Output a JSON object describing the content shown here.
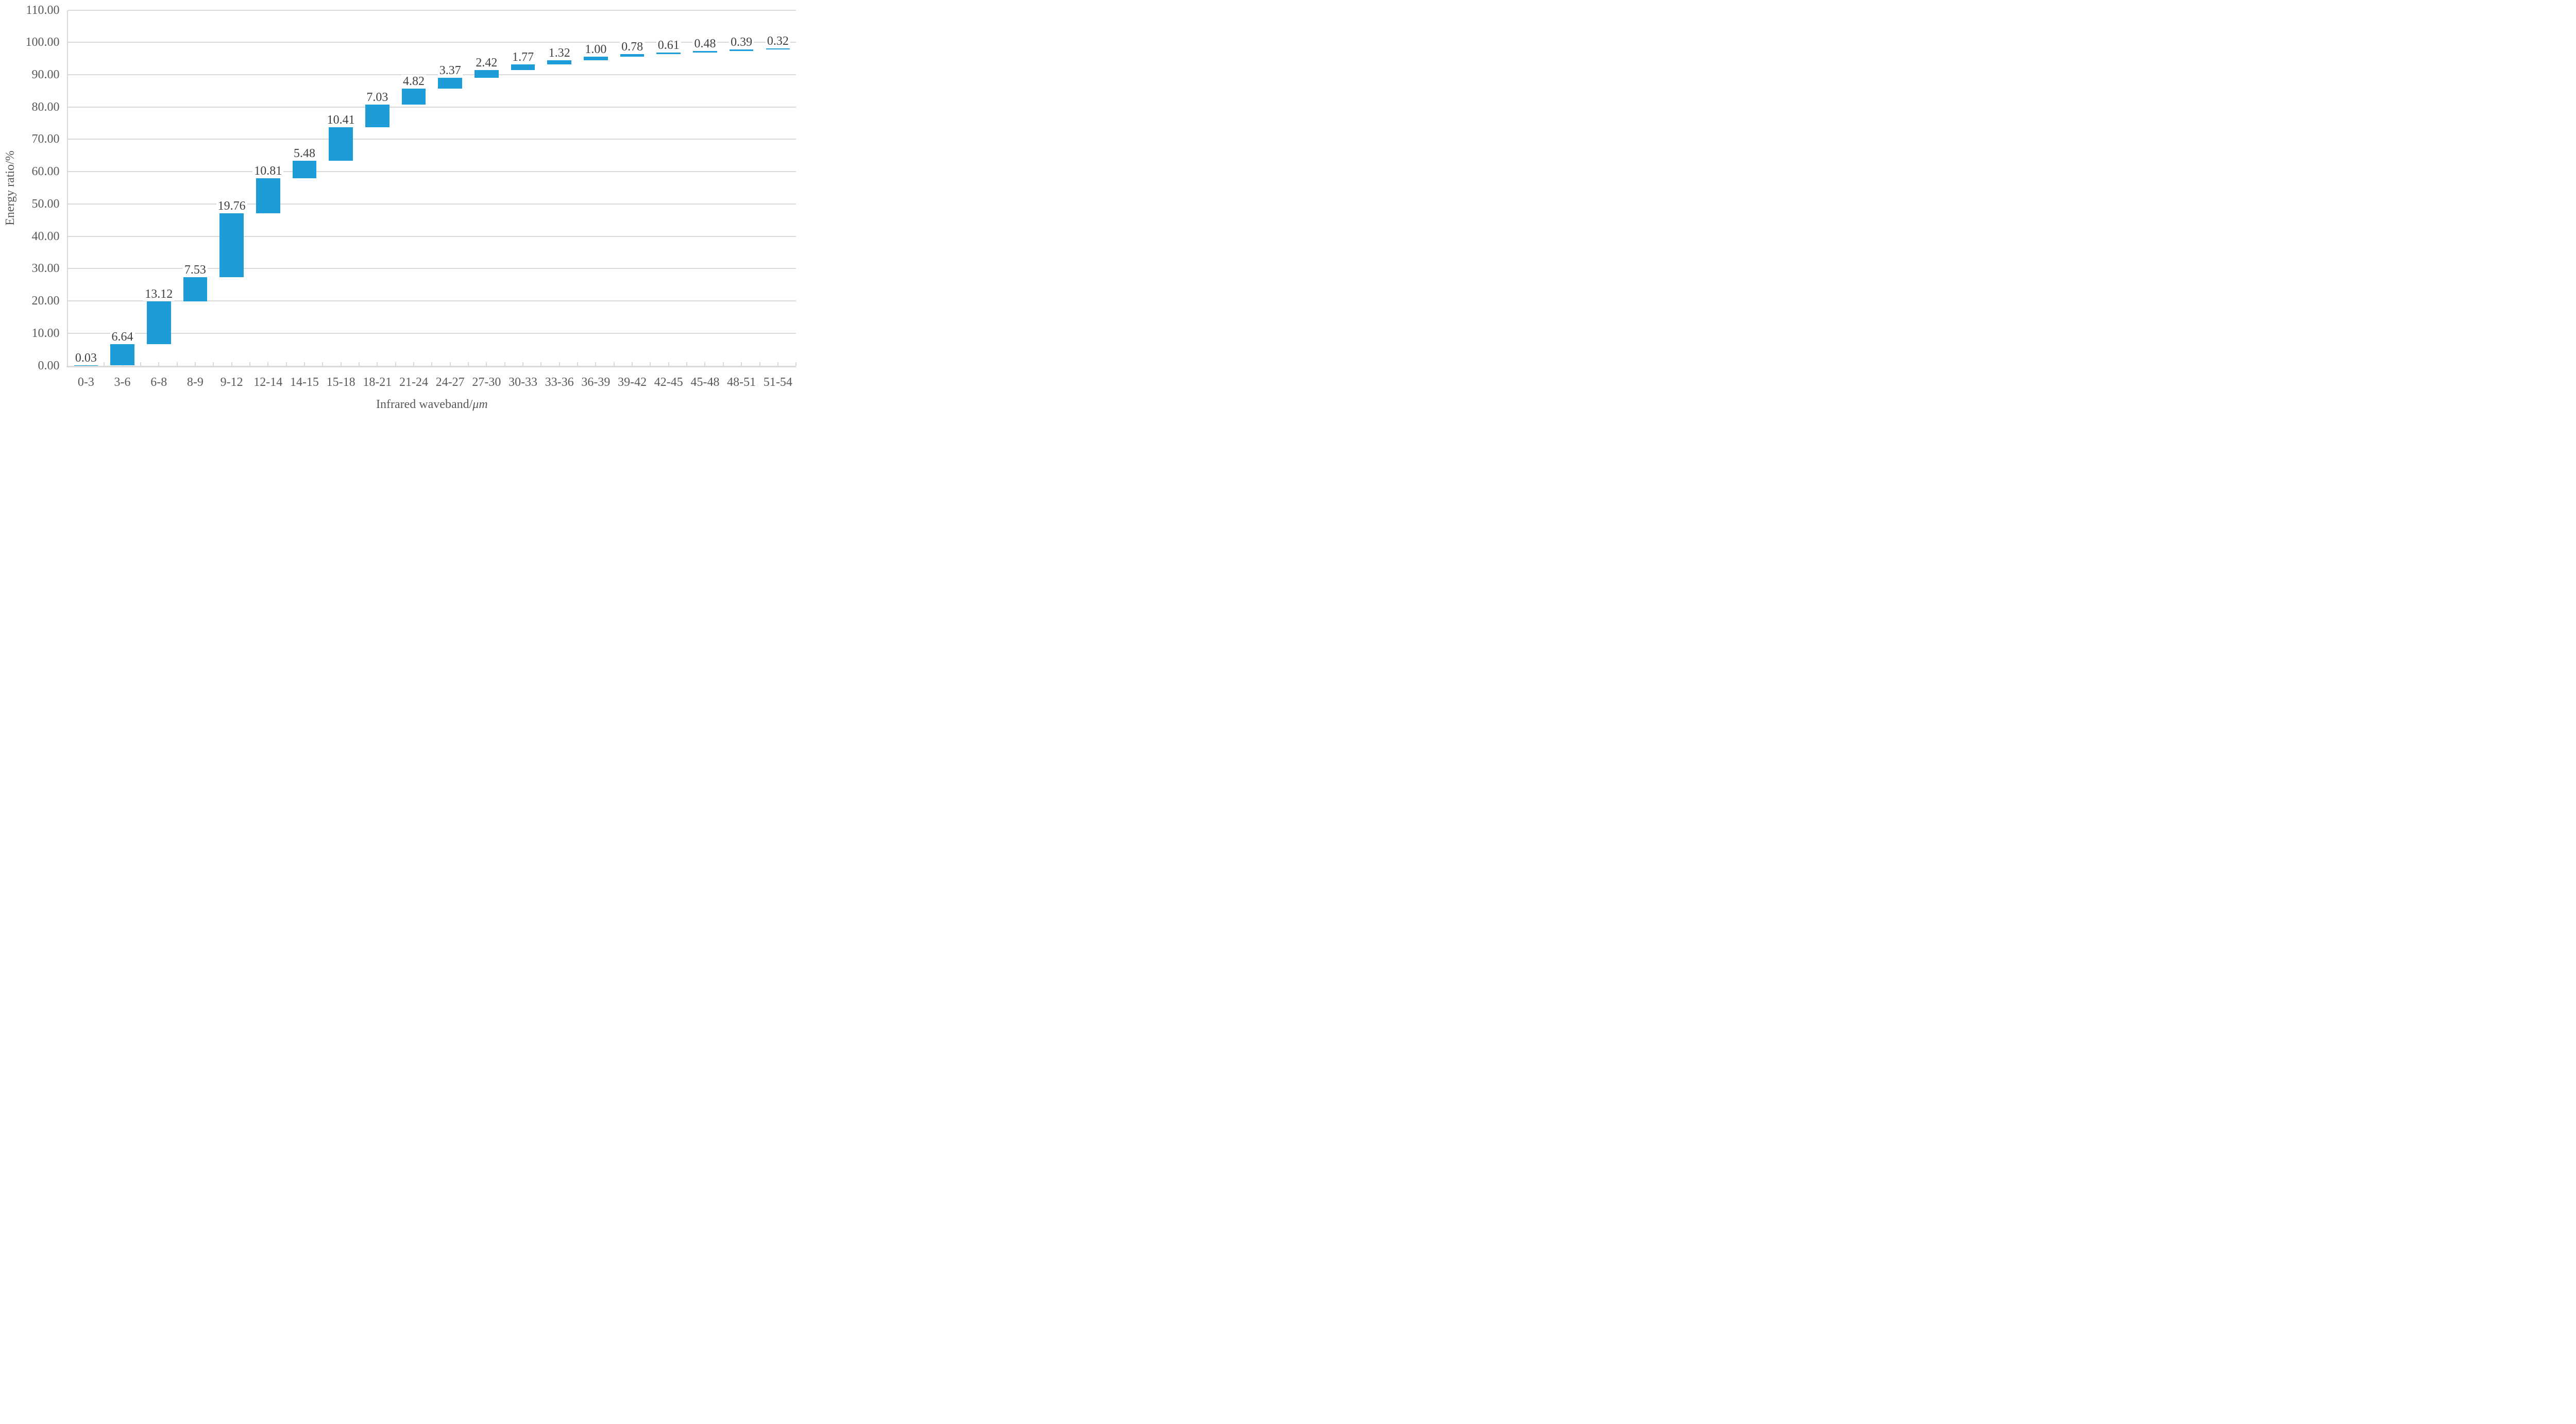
{
  "chart_data": {
    "type": "bar",
    "variant": "waterfall",
    "title": "",
    "categories": [
      "0-3",
      "3-6",
      "6-8",
      "8-9",
      "9-12",
      "12-14",
      "14-15",
      "15-18",
      "18-21",
      "21-24",
      "24-27",
      "27-30",
      "30-33",
      "33-36",
      "36-39",
      "39-42",
      "42-45",
      "45-48",
      "48-51",
      "51-54"
    ],
    "values": [
      0.03,
      6.64,
      13.12,
      7.53,
      19.76,
      10.81,
      5.48,
      10.41,
      7.03,
      4.82,
      3.37,
      2.42,
      1.77,
      1.32,
      1.0,
      0.78,
      0.61,
      0.48,
      0.39,
      0.32
    ],
    "value_labels": [
      "0.03",
      "6.64",
      "13.12",
      "7.53",
      "19.76",
      "10.81",
      "5.48",
      "10.41",
      "7.03",
      "4.82",
      "3.37",
      "2.42",
      "1.77",
      "1.32",
      "1.00",
      "0.78",
      "0.61",
      "0.48",
      "0.39",
      "0.32"
    ],
    "cumulative_end": [
      0.03,
      6.67,
      19.79,
      27.32,
      47.08,
      57.89,
      63.37,
      73.78,
      80.81,
      85.63,
      89.0,
      91.42,
      93.19,
      94.51,
      95.51,
      96.29,
      96.9,
      97.38,
      97.77,
      98.09
    ],
    "xlabel_prefix": "Infrared waveband/",
    "xlabel_unit": "μm",
    "ylabel": "Energy ratio/%",
    "ylim": [
      0,
      110
    ],
    "ytick_step": 10,
    "ytick_labels": [
      "0.00",
      "10.00",
      "20.00",
      "30.00",
      "40.00",
      "50.00",
      "60.00",
      "70.00",
      "80.00",
      "90.00",
      "100.00",
      "110.00"
    ],
    "grid": true,
    "legend": "none",
    "bar_color": "#1d9cd8",
    "gridline_color": "#d9d9d9",
    "axis_text_color": "#595959",
    "value_label_color": "#404040"
  }
}
